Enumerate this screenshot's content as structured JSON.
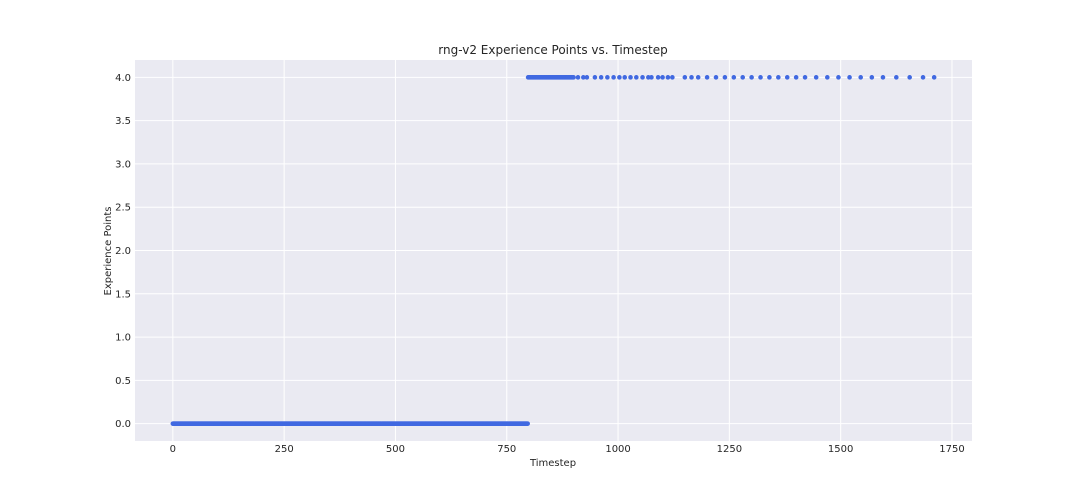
{
  "chart_data": {
    "type": "scatter",
    "title": "rng-v2 Experience Points vs. Timestep",
    "xlabel": "Timestep",
    "ylabel": "Experience Points",
    "xlim": [
      -85,
      1795
    ],
    "ylim": [
      -0.2,
      4.2
    ],
    "xticks": [
      0,
      250,
      500,
      750,
      1000,
      1250,
      1500,
      1750
    ],
    "yticks": [
      0.0,
      0.5,
      1.0,
      1.5,
      2.0,
      2.5,
      3.0,
      3.5,
      4.0
    ],
    "xtick_labels": [
      "0",
      "250",
      "500",
      "750",
      "1000",
      "1250",
      "1500",
      "1750"
    ],
    "ytick_labels": [
      "0.0",
      "0.5",
      "1.0",
      "1.5",
      "2.0",
      "2.5",
      "3.0",
      "3.5",
      "4.0"
    ],
    "grid": true,
    "background_color": "#eaeaf2",
    "marker_color": "#4169e1",
    "series": [
      {
        "segments": [
          {
            "x_start": 0,
            "x_end": 797,
            "step": 1,
            "y": 0.0
          },
          {
            "x_start": 798,
            "x_end": 900,
            "step": 2,
            "y": 4.0
          }
        ],
        "points": [
          {
            "x": 910,
            "y": 4.0
          },
          {
            "x": 922,
            "y": 4.0
          },
          {
            "x": 930,
            "y": 4.0
          },
          {
            "x": 948,
            "y": 4.0
          },
          {
            "x": 962,
            "y": 4.0
          },
          {
            "x": 976,
            "y": 4.0
          },
          {
            "x": 990,
            "y": 4.0
          },
          {
            "x": 1003,
            "y": 4.0
          },
          {
            "x": 1015,
            "y": 4.0
          },
          {
            "x": 1028,
            "y": 4.0
          },
          {
            "x": 1041,
            "y": 4.0
          },
          {
            "x": 1055,
            "y": 4.0
          },
          {
            "x": 1068,
            "y": 4.0
          },
          {
            "x": 1075,
            "y": 4.0
          },
          {
            "x": 1090,
            "y": 4.0
          },
          {
            "x": 1100,
            "y": 4.0
          },
          {
            "x": 1112,
            "y": 4.0
          },
          {
            "x": 1122,
            "y": 4.0
          },
          {
            "x": 1150,
            "y": 4.0
          },
          {
            "x": 1165,
            "y": 4.0
          },
          {
            "x": 1180,
            "y": 4.0
          },
          {
            "x": 1200,
            "y": 4.0
          },
          {
            "x": 1220,
            "y": 4.0
          },
          {
            "x": 1240,
            "y": 4.0
          },
          {
            "x": 1260,
            "y": 4.0
          },
          {
            "x": 1280,
            "y": 4.0
          },
          {
            "x": 1300,
            "y": 4.0
          },
          {
            "x": 1320,
            "y": 4.0
          },
          {
            "x": 1340,
            "y": 4.0
          },
          {
            "x": 1360,
            "y": 4.0
          },
          {
            "x": 1380,
            "y": 4.0
          },
          {
            "x": 1400,
            "y": 4.0
          },
          {
            "x": 1420,
            "y": 4.0
          },
          {
            "x": 1445,
            "y": 4.0
          },
          {
            "x": 1470,
            "y": 4.0
          },
          {
            "x": 1495,
            "y": 4.0
          },
          {
            "x": 1520,
            "y": 4.0
          },
          {
            "x": 1545,
            "y": 4.0
          },
          {
            "x": 1570,
            "y": 4.0
          },
          {
            "x": 1595,
            "y": 4.0
          },
          {
            "x": 1625,
            "y": 4.0
          },
          {
            "x": 1655,
            "y": 4.0
          },
          {
            "x": 1685,
            "y": 4.0
          },
          {
            "x": 1710,
            "y": 4.0
          }
        ]
      }
    ]
  }
}
